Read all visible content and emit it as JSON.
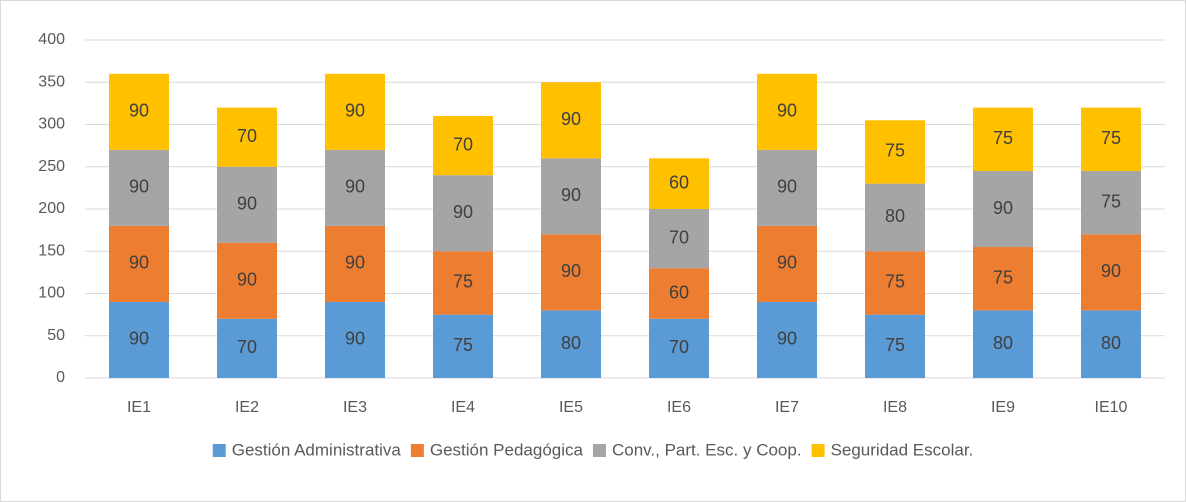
{
  "chart_data": {
    "type": "stacked_bar",
    "categories": [
      "IE1",
      "IE2",
      "IE3",
      "IE4",
      "IE5",
      "IE6",
      "IE7",
      "IE8",
      "IE9",
      "IE10"
    ],
    "series": [
      {
        "name": "Gestión Administrativa",
        "color": "#5b9bd5",
        "values": [
          90,
          70,
          90,
          75,
          80,
          70,
          90,
          75,
          80,
          80
        ]
      },
      {
        "name": "Gestión Pedagógica",
        "color": "#ed7d31",
        "values": [
          90,
          90,
          90,
          75,
          90,
          60,
          90,
          75,
          75,
          90
        ]
      },
      {
        "name": "Conv., Part. Esc. y Coop.",
        "color": "#a5a5a5",
        "values": [
          90,
          90,
          90,
          90,
          90,
          70,
          90,
          80,
          90,
          75
        ]
      },
      {
        "name": "Seguridad Escolar.",
        "color": "#ffc000",
        "values": [
          90,
          70,
          90,
          70,
          90,
          60,
          90,
          75,
          75,
          75
        ]
      }
    ],
    "ylim": [
      0,
      400
    ],
    "yticks": [
      0,
      50,
      100,
      150,
      200,
      250,
      300,
      350,
      400
    ],
    "grid": true,
    "legend": "bottom"
  }
}
